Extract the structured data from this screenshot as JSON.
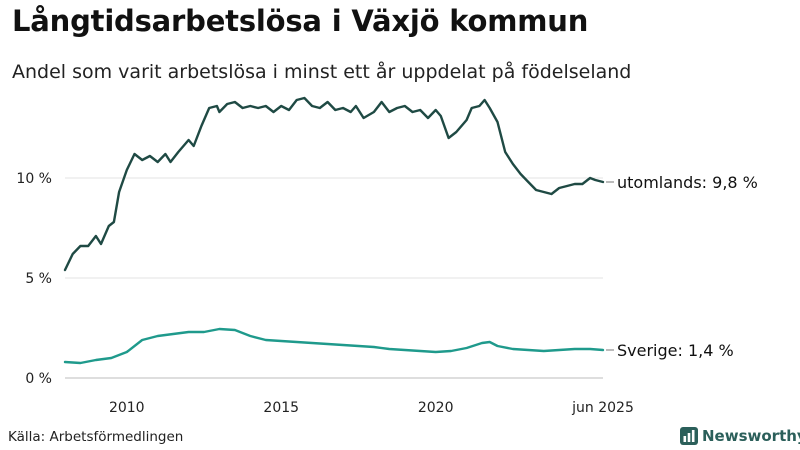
{
  "title": "Långtidsarbetslösa i Växjö kommun",
  "subtitle": "Andel som varit arbetslösa i minst ett år uppdelat på födelseland",
  "source": "Källa: Arbetsförmedlingen",
  "brand": {
    "name": "Newsworthy",
    "icon": "bar-chart-icon",
    "color": "#2b5f5a"
  },
  "chart_data": {
    "type": "line",
    "ylim": [
      0,
      14.3
    ],
    "y_ticks": [
      0,
      5,
      10
    ],
    "y_tick_labels": [
      "0 %",
      "5 %",
      "10 %"
    ],
    "x_range": [
      "2008-01",
      "2025-06"
    ],
    "x_ticks": [
      "2010-01",
      "2015-01",
      "2020-01",
      "2025-06"
    ],
    "x_tick_labels": [
      "2010",
      "2015",
      "2020",
      "jun 2025"
    ],
    "grid": true,
    "series": [
      {
        "name": "utomlands",
        "end_label": "utomlands: 9,8 %",
        "color": "#1f4a44",
        "points": [
          [
            "2008-01",
            5.4
          ],
          [
            "2008-04",
            6.2
          ],
          [
            "2008-07",
            6.6
          ],
          [
            "2008-10",
            6.6
          ],
          [
            "2009-01",
            7.1
          ],
          [
            "2009-03",
            6.7
          ],
          [
            "2009-06",
            7.6
          ],
          [
            "2009-08",
            7.8
          ],
          [
            "2009-10",
            9.3
          ],
          [
            "2010-01",
            10.4
          ],
          [
            "2010-04",
            11.2
          ],
          [
            "2010-07",
            10.9
          ],
          [
            "2010-10",
            11.1
          ],
          [
            "2011-01",
            10.8
          ],
          [
            "2011-04",
            11.2
          ],
          [
            "2011-06",
            10.8
          ],
          [
            "2011-09",
            11.3
          ],
          [
            "2012-01",
            11.9
          ],
          [
            "2012-03",
            11.6
          ],
          [
            "2012-06",
            12.6
          ],
          [
            "2012-09",
            13.5
          ],
          [
            "2012-12",
            13.6
          ],
          [
            "2013-01",
            13.3
          ],
          [
            "2013-04",
            13.7
          ],
          [
            "2013-07",
            13.8
          ],
          [
            "2013-10",
            13.5
          ],
          [
            "2014-01",
            13.6
          ],
          [
            "2014-04",
            13.5
          ],
          [
            "2014-07",
            13.6
          ],
          [
            "2014-10",
            13.3
          ],
          [
            "2015-01",
            13.6
          ],
          [
            "2015-04",
            13.4
          ],
          [
            "2015-07",
            13.9
          ],
          [
            "2015-10",
            14.0
          ],
          [
            "2016-01",
            13.6
          ],
          [
            "2016-04",
            13.5
          ],
          [
            "2016-07",
            13.8
          ],
          [
            "2016-10",
            13.4
          ],
          [
            "2017-01",
            13.5
          ],
          [
            "2017-04",
            13.3
          ],
          [
            "2017-06",
            13.6
          ],
          [
            "2017-09",
            13.0
          ],
          [
            "2018-01",
            13.3
          ],
          [
            "2018-04",
            13.8
          ],
          [
            "2018-07",
            13.3
          ],
          [
            "2018-10",
            13.5
          ],
          [
            "2019-01",
            13.6
          ],
          [
            "2019-04",
            13.3
          ],
          [
            "2019-07",
            13.4
          ],
          [
            "2019-10",
            13.0
          ],
          [
            "2020-01",
            13.4
          ],
          [
            "2020-03",
            13.1
          ],
          [
            "2020-06",
            12.0
          ],
          [
            "2020-09",
            12.3
          ],
          [
            "2021-01",
            12.9
          ],
          [
            "2021-03",
            13.5
          ],
          [
            "2021-06",
            13.6
          ],
          [
            "2021-08",
            13.9
          ],
          [
            "2021-10",
            13.5
          ],
          [
            "2022-01",
            12.8
          ],
          [
            "2022-04",
            11.3
          ],
          [
            "2022-07",
            10.7
          ],
          [
            "2022-10",
            10.2
          ],
          [
            "2023-01",
            9.8
          ],
          [
            "2023-04",
            9.4
          ],
          [
            "2023-07",
            9.3
          ],
          [
            "2023-10",
            9.2
          ],
          [
            "2024-01",
            9.5
          ],
          [
            "2024-04",
            9.6
          ],
          [
            "2024-07",
            9.7
          ],
          [
            "2024-10",
            9.7
          ],
          [
            "2025-01",
            10.0
          ],
          [
            "2025-03",
            9.9
          ],
          [
            "2025-06",
            9.8
          ]
        ]
      },
      {
        "name": "Sverige",
        "end_label": "Sverige: 1,4 %",
        "color": "#1f9a8c",
        "points": [
          [
            "2008-01",
            0.8
          ],
          [
            "2008-07",
            0.75
          ],
          [
            "2009-01",
            0.9
          ],
          [
            "2009-07",
            1.0
          ],
          [
            "2010-01",
            1.3
          ],
          [
            "2010-07",
            1.9
          ],
          [
            "2011-01",
            2.1
          ],
          [
            "2011-07",
            2.2
          ],
          [
            "2012-01",
            2.3
          ],
          [
            "2012-07",
            2.3
          ],
          [
            "2013-01",
            2.45
          ],
          [
            "2013-07",
            2.4
          ],
          [
            "2014-01",
            2.1
          ],
          [
            "2014-07",
            1.9
          ],
          [
            "2015-01",
            1.85
          ],
          [
            "2015-07",
            1.8
          ],
          [
            "2016-01",
            1.75
          ],
          [
            "2016-07",
            1.7
          ],
          [
            "2017-01",
            1.65
          ],
          [
            "2017-07",
            1.6
          ],
          [
            "2018-01",
            1.55
          ],
          [
            "2018-07",
            1.45
          ],
          [
            "2019-01",
            1.4
          ],
          [
            "2019-07",
            1.35
          ],
          [
            "2020-01",
            1.3
          ],
          [
            "2020-07",
            1.35
          ],
          [
            "2021-01",
            1.5
          ],
          [
            "2021-07",
            1.75
          ],
          [
            "2021-10",
            1.8
          ],
          [
            "2022-01",
            1.6
          ],
          [
            "2022-07",
            1.45
          ],
          [
            "2023-01",
            1.4
          ],
          [
            "2023-07",
            1.35
          ],
          [
            "2024-01",
            1.4
          ],
          [
            "2024-07",
            1.45
          ],
          [
            "2025-01",
            1.45
          ],
          [
            "2025-06",
            1.4
          ]
        ]
      }
    ]
  }
}
